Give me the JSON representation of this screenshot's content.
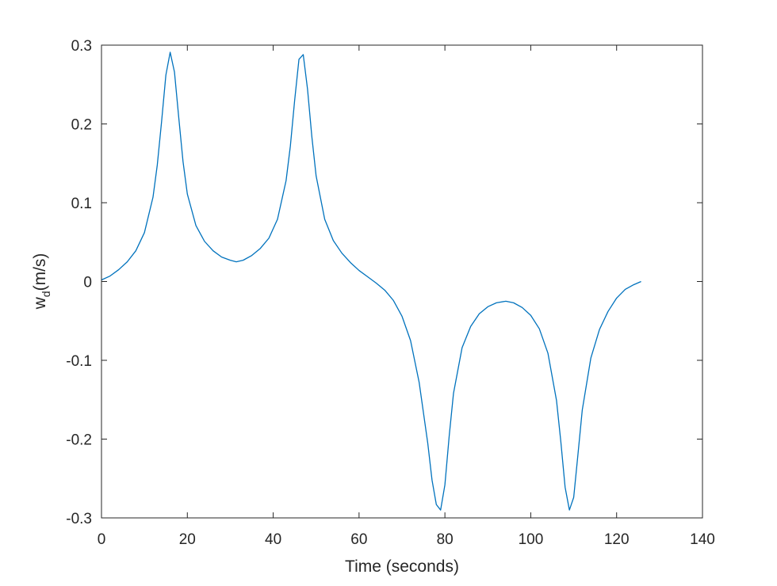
{
  "chart_data": {
    "type": "line",
    "title": "",
    "xlabel": "Time (seconds)",
    "ylabel": {
      "base": "w",
      "subscript": "d",
      "unit": "(m/s)"
    },
    "xlim": [
      0,
      140
    ],
    "ylim": [
      -0.3,
      0.3
    ],
    "xticks": [
      0,
      20,
      40,
      60,
      80,
      100,
      120,
      140
    ],
    "xtick_labels": [
      "0",
      "20",
      "40",
      "60",
      "80",
      "100",
      "120",
      "140"
    ],
    "yticks": [
      -0.3,
      -0.2,
      -0.1,
      0,
      0.1,
      0.2,
      0.3
    ],
    "ytick_labels": [
      "-0.3",
      "-0.2",
      "-0.1",
      "0",
      "0.1",
      "0.2",
      "0.3"
    ],
    "grid": false,
    "legend": "none",
    "line_color": "#0072bd",
    "axis_color": "#262626",
    "series": [
      {
        "x": [
          0,
          2,
          4,
          6,
          8,
          10,
          12,
          13,
          14,
          15,
          16,
          17,
          18,
          19,
          20,
          22,
          24,
          26,
          28,
          30,
          31.4,
          33,
          35,
          37,
          39,
          41,
          43,
          44,
          45,
          46,
          47,
          48,
          49,
          50,
          52,
          54,
          56,
          58,
          60,
          62,
          64,
          66,
          68,
          70,
          72,
          74,
          76,
          77,
          78,
          79,
          80,
          81,
          82,
          84,
          86,
          88,
          90,
          92,
          94.2,
          96,
          98,
          100,
          102,
          104,
          106,
          107,
          108,
          109,
          110,
          111,
          112,
          114,
          116,
          118,
          120,
          122,
          124,
          125.7
        ],
        "y": [
          0.002,
          0.007,
          0.015,
          0.025,
          0.039,
          0.062,
          0.107,
          0.148,
          0.203,
          0.262,
          0.291,
          0.266,
          0.208,
          0.152,
          0.111,
          0.071,
          0.051,
          0.039,
          0.031,
          0.027,
          0.025,
          0.027,
          0.033,
          0.042,
          0.055,
          0.079,
          0.128,
          0.172,
          0.23,
          0.282,
          0.288,
          0.244,
          0.184,
          0.134,
          0.079,
          0.052,
          0.036,
          0.024,
          0.014,
          0.006,
          -0.002,
          -0.011,
          -0.024,
          -0.044,
          -0.075,
          -0.128,
          -0.205,
          -0.252,
          -0.283,
          -0.29,
          -0.258,
          -0.196,
          -0.142,
          -0.084,
          -0.057,
          -0.041,
          -0.032,
          -0.027,
          -0.025,
          -0.027,
          -0.033,
          -0.043,
          -0.06,
          -0.091,
          -0.151,
          -0.203,
          -0.261,
          -0.29,
          -0.274,
          -0.219,
          -0.163,
          -0.097,
          -0.061,
          -0.038,
          -0.021,
          -0.01,
          -0.004,
          0.0
        ]
      }
    ]
  }
}
